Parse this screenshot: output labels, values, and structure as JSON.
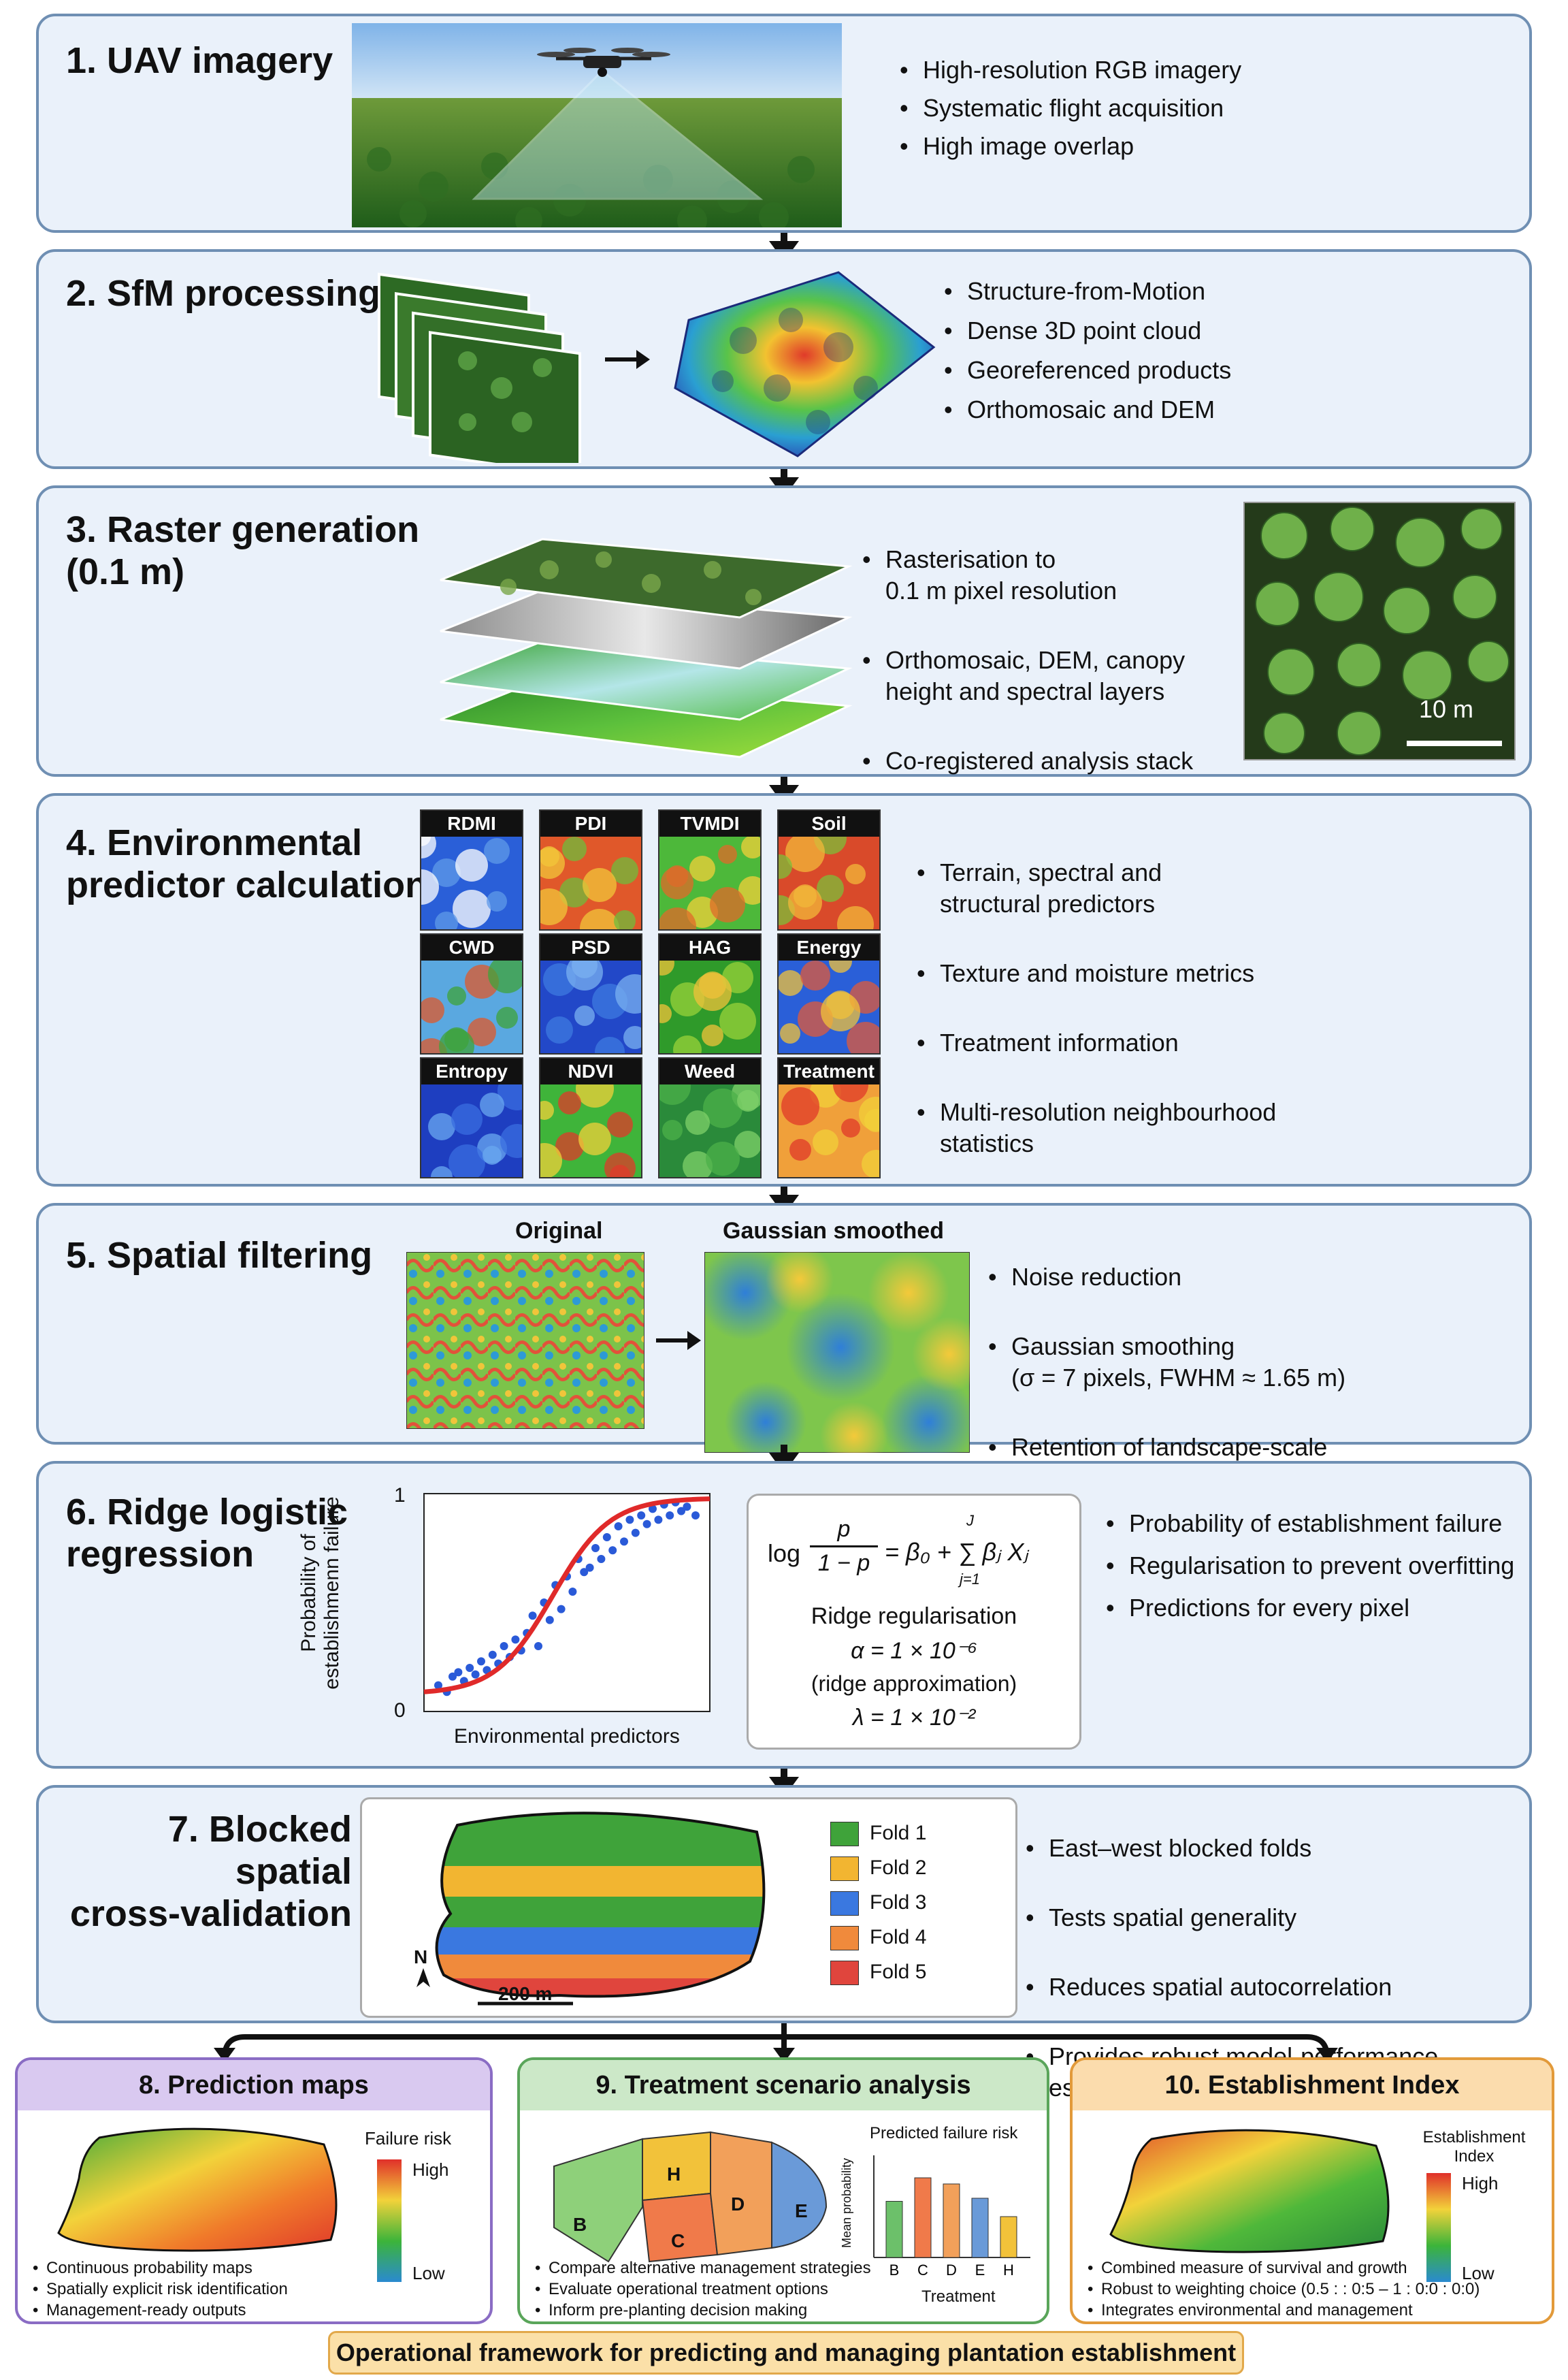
{
  "panels": {
    "p1": {
      "title": "1. UAV imagery",
      "bullets": [
        "High-resolution RGB imagery",
        "Systematic flight acquisition",
        "High image overlap"
      ]
    },
    "p2": {
      "title": "2. SfM processing",
      "bullets": [
        "Structure-from-Motion",
        "Dense 3D point cloud",
        "Georeferenced products",
        "Orthomosaic and DEM"
      ]
    },
    "p3": {
      "title": "3. Raster generation\n(0.1 m)",
      "bullets": [
        "Rasterisation to\n0.1 m pixel resolution",
        "Orthomosaic, DEM, canopy\nheight and spectral layers",
        "Co-registered analysis stack"
      ],
      "scale_label": "10 m"
    },
    "p4": {
      "title": "4. Environmental\npredictor calculation",
      "tiles": [
        "RDMI",
        "PDI",
        "TVMDI",
        "Soil",
        "CWD",
        "PSD",
        "HAG",
        "Energy",
        "Entropy",
        "NDVI",
        "Weed",
        "Treatment"
      ],
      "bullets": [
        "Terrain, spectral and\nstructural predictors",
        "Texture and moisture metrics",
        "Treatment information",
        "Multi-resolution neighbourhood\nstatistics"
      ]
    },
    "p5": {
      "title": "5. Spatial filtering",
      "original_label": "Original",
      "smoothed_label": "Gaussian smoothed",
      "bullets": [
        "Noise reduction",
        "Gaussian smoothing\n(σ = 7 pixels, FWHM ≈ 1.65 m)",
        "Retention of landscape-scale\nvariability"
      ]
    },
    "p6": {
      "title": "6. Ridge logistic\nregression",
      "y_axis_label": "Probability of\nestablishmenn failure",
      "x_axis_label": "Environmental predictors",
      "y_tick_top": "1",
      "y_tick_bottom": "0",
      "formula": {
        "lhs_log": "log",
        "frac_num": "p",
        "frac_den": "1 − p",
        "rhs": "= β₀ + ∑ βⱼ Xⱼ",
        "sum_top": "J",
        "sum_bottom": "j=1",
        "reg_title": "Ridge regularisation",
        "alpha": "α = 1 × 10⁻⁶",
        "approx": "(ridge approximation)",
        "lambda": "λ = 1 × 10⁻²"
      },
      "bullets": [
        "Probability of establishment failure",
        "Regularisation to prevent overfitting",
        "Predictions for every pixel"
      ]
    },
    "p7": {
      "title": "7. Blocked spatial\ncross-validation",
      "north": "N",
      "scale": "200 m",
      "folds": [
        {
          "label": "Fold 1",
          "color": "#3fa33a"
        },
        {
          "label": "Fold 2",
          "color": "#f2b531"
        },
        {
          "label": "Fold 3",
          "color": "#3a78e0"
        },
        {
          "label": "Fold 4",
          "color": "#f08a3c"
        },
        {
          "label": "Fold 5",
          "color": "#e0453d"
        }
      ],
      "bullets": [
        "East–west blocked folds",
        "Tests spatial generality",
        "Reduces spatial autocorrelation",
        "Provides robust model-performance\nestimates"
      ]
    }
  },
  "bottom": {
    "p8": {
      "title": "8. Prediction maps",
      "legend_title": "Failure risk",
      "high": "High",
      "low": "Low",
      "bullets": [
        "Continuous probability maps",
        "Spatially explicit risk identification",
        "Management-ready outputs"
      ],
      "color": "#a98bd6"
    },
    "p9": {
      "title": "9. Treatment scenario analysis",
      "chart_title": "Predicted failure risk",
      "ylabel": "Mean probability",
      "xlabel": "Treatment",
      "zones": [
        "B",
        "H",
        "C",
        "D",
        "E"
      ],
      "bullets": [
        "Compare alternative management strategies",
        "Evaluate operational treatment options",
        "Inform pre-planting decision making"
      ],
      "color": "#7cc07c"
    },
    "p10": {
      "title": "10. Establishment Index",
      "legend_title": "Establishment\nIndex",
      "high": "High",
      "low": "Low",
      "bullets": [
        "Combined measure of survival and growth",
        "Robust to weighting choice (0.5 : : 0:5 – 1 : 0:0 : 0:0)",
        "Integrates environmental and management"
      ],
      "color": "#f2b25a"
    }
  },
  "footer": "Operational framework for predicting and managing plantation establishment",
  "chart_data": [
    {
      "type": "scatter",
      "title": "",
      "xlabel": "Environmental predictors",
      "ylabel": "Probability of establishmenn failure",
      "ylim": [
        0,
        1
      ],
      "x": [
        0.05,
        0.08,
        0.1,
        0.12,
        0.14,
        0.16,
        0.18,
        0.2,
        0.22,
        0.24,
        0.26,
        0.28,
        0.3,
        0.32,
        0.34,
        0.36,
        0.38,
        0.4,
        0.42,
        0.44,
        0.46,
        0.48,
        0.5,
        0.52,
        0.54,
        0.56,
        0.58,
        0.6,
        0.62,
        0.64,
        0.66,
        0.68,
        0.7,
        0.72,
        0.74,
        0.76,
        0.78,
        0.8,
        0.82,
        0.84,
        0.86,
        0.88,
        0.9,
        0.92,
        0.95
      ],
      "y": [
        0.12,
        0.09,
        0.16,
        0.18,
        0.14,
        0.2,
        0.17,
        0.23,
        0.19,
        0.26,
        0.22,
        0.3,
        0.25,
        0.33,
        0.28,
        0.36,
        0.44,
        0.3,
        0.5,
        0.42,
        0.58,
        0.47,
        0.62,
        0.55,
        0.7,
        0.64,
        0.66,
        0.75,
        0.7,
        0.8,
        0.74,
        0.85,
        0.78,
        0.88,
        0.82,
        0.9,
        0.86,
        0.93,
        0.88,
        0.95,
        0.9,
        0.96,
        0.92,
        0.94,
        0.9
      ]
    },
    {
      "type": "bar",
      "title": "Predicted failure risk",
      "xlabel": "Treatment",
      "ylabel": "Mean probability",
      "categories": [
        "B",
        "C",
        "D",
        "E",
        "H"
      ],
      "values": [
        0.55,
        0.78,
        0.72,
        0.58,
        0.4
      ]
    }
  ]
}
